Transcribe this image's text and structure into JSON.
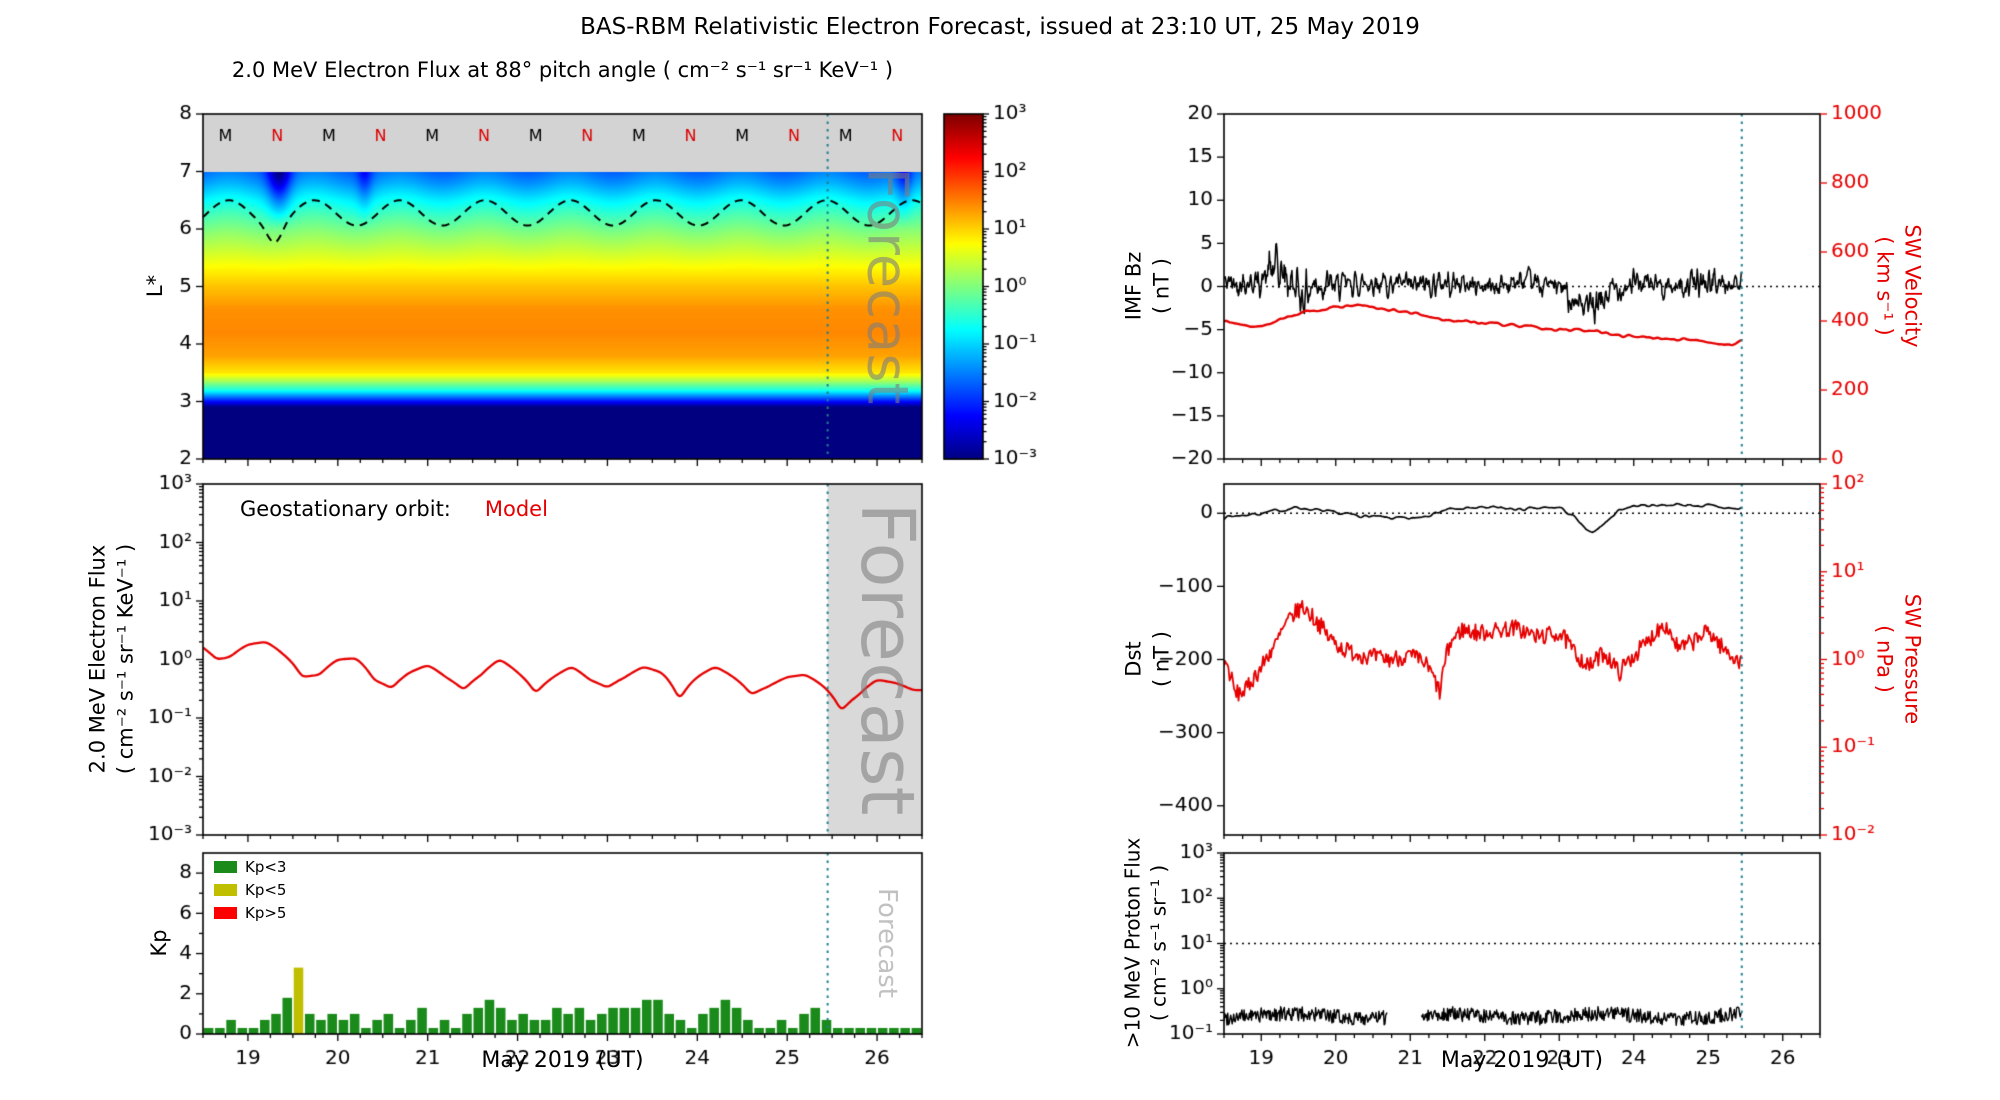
{
  "title": "BAS-RBM Relativistic Electron Forecast, issued at 23:10 UT, 25 May 2019",
  "x_axis": {
    "label": "May 2019 (UT)",
    "range": [
      18.5,
      26.5
    ],
    "ticks": [
      19,
      20,
      21,
      22,
      23,
      24,
      25,
      26
    ]
  },
  "forecast": {
    "label": "Forecast",
    "start_day": 25.45
  },
  "colors": {
    "model_red": "#e60000",
    "forecast_line": "#1f7f8f",
    "forecast_band": "#d9d9d9",
    "heatmap_gray_band": "#d3d3d3",
    "n_label_red": "#dd0000",
    "kp_green": "#1a8a1a",
    "kp_yellow": "#bfbf00",
    "kp_red": "#ff0000"
  },
  "chart_data": {
    "panels": [
      {
        "id": "electron-flux-heatmap",
        "type": "heatmap",
        "title": "2.0 MeV Electron Flux at 88° pitch angle ( cm⁻² s⁻¹ sr⁻¹ KeV⁻¹ )",
        "ylabel": "L*",
        "ylim": [
          2,
          8
        ],
        "yticks": [
          2,
          3,
          4,
          5,
          6,
          7,
          8
        ],
        "gray_band_above": 7,
        "colormap": "jet",
        "clim_log10": [
          -3,
          3
        ],
        "colorbar_tick_exponents": [
          3,
          2,
          1,
          0,
          -1,
          -2,
          -3
        ],
        "profile_L": [
          2.0,
          2.9,
          3.05,
          3.2,
          3.35,
          3.5,
          3.8,
          4.2,
          4.6,
          5.0,
          5.3,
          5.6,
          5.9,
          6.2,
          6.5,
          6.8,
          7.0
        ],
        "profile_log10_flux": [
          -3,
          -3,
          -1.8,
          -0.6,
          0.2,
          0.9,
          1.3,
          1.45,
          1.4,
          1.1,
          0.8,
          0.45,
          0.1,
          -0.3,
          -0.75,
          -1.3,
          -1.6
        ],
        "wiggle": {
          "amplitude": 0.12,
          "period_days": 0.95,
          "min_L": 5.2
        },
        "dips": [
          {
            "x": 19.35,
            "sigma": 0.09,
            "depth": 1.3
          },
          {
            "x": 20.3,
            "sigma": 0.06,
            "depth": 0.6
          },
          {
            "x": 26.3,
            "sigma": 0.07,
            "depth": 0.8
          }
        ],
        "dashed_line": {
          "name": "geostationary-orbit-lstar",
          "mean": 6.28,
          "amplitude": 0.22,
          "period_days": 0.95,
          "phase_x": 18.55,
          "dip": {
            "x": 19.3,
            "sigma": 0.08,
            "depth": 0.3
          }
        },
        "top_labels": [
          {
            "x": 18.75,
            "text": "M"
          },
          {
            "x": 19.325,
            "text": "N"
          },
          {
            "x": 19.9,
            "text": "M"
          },
          {
            "x": 20.475,
            "text": "N"
          },
          {
            "x": 21.05,
            "text": "M"
          },
          {
            "x": 21.625,
            "text": "N"
          },
          {
            "x": 22.2,
            "text": "M"
          },
          {
            "x": 22.775,
            "text": "N"
          },
          {
            "x": 23.35,
            "text": "M"
          },
          {
            "x": 23.925,
            "text": "N"
          },
          {
            "x": 24.5,
            "text": "M"
          },
          {
            "x": 25.075,
            "text": "N"
          },
          {
            "x": 25.65,
            "text": "M"
          },
          {
            "x": 26.225,
            "text": "N"
          }
        ]
      },
      {
        "id": "geostationary-electron-flux",
        "type": "line",
        "ylabel_line1": "2.0 MeV Electron Flux",
        "ylabel_line2": "( cm⁻² s⁻¹ sr⁻¹ KeV⁻¹ )",
        "yscale": "log",
        "ylim_exponents": [
          -3,
          3
        ],
        "annotation_prefix": "Geostationary orbit:",
        "series": [
          {
            "name": "Model",
            "color": "red",
            "x": [
              18.5,
              18.65,
              18.8,
              19.0,
              19.2,
              19.4,
              19.6,
              19.8,
              20.0,
              20.2,
              20.4,
              20.6,
              20.8,
              21.0,
              21.2,
              21.4,
              21.6,
              21.8,
              22.0,
              22.2,
              22.4,
              22.6,
              22.8,
              23.0,
              23.2,
              23.4,
              23.6,
              23.8,
              24.0,
              24.2,
              24.4,
              24.6,
              24.8,
              25.0,
              25.2,
              25.4,
              25.6,
              25.8,
              26.0,
              26.2,
              26.4
            ],
            "flux": [
              1.6,
              1.0,
              1.1,
              1.8,
              2.0,
              1.2,
              0.5,
              0.55,
              1.0,
              1.05,
              0.45,
              0.32,
              0.6,
              0.8,
              0.5,
              0.3,
              0.55,
              1.0,
              0.6,
              0.26,
              0.5,
              0.75,
              0.45,
              0.33,
              0.5,
              0.75,
              0.6,
              0.2,
              0.5,
              0.75,
              0.5,
              0.25,
              0.35,
              0.5,
              0.55,
              0.35,
              0.13,
              0.25,
              0.45,
              0.4,
              0.3
            ]
          }
        ]
      },
      {
        "id": "kp-index",
        "type": "bar",
        "ylabel": "Kp",
        "xlabel": "May 2019 (UT)",
        "ylim": [
          0,
          9
        ],
        "yticks": [
          0,
          2,
          4,
          6,
          8
        ],
        "bar_start_day": 18.5,
        "bar_step_days": 0.125,
        "color_rule": {
          "green_below": 3,
          "yellow_below": 5,
          "red_at_or_above": 5
        },
        "legend": [
          {
            "label": "Kp<3",
            "color": "green"
          },
          {
            "label": "Kp<5",
            "color": "yellow"
          },
          {
            "label": "Kp>5",
            "color": "red"
          }
        ],
        "values": [
          0.3,
          0.3,
          0.7,
          0.3,
          0.3,
          0.7,
          1.0,
          1.8,
          3.3,
          1.0,
          0.7,
          1.0,
          0.7,
          1.0,
          0.3,
          0.7,
          1.0,
          0.3,
          0.7,
          1.3,
          0.3,
          0.7,
          0.3,
          1.0,
          1.3,
          1.7,
          1.3,
          0.7,
          1.0,
          0.7,
          0.7,
          1.3,
          1.0,
          1.3,
          0.7,
          1.0,
          1.3,
          1.3,
          1.3,
          1.7,
          1.7,
          1.0,
          0.7,
          0.3,
          1.0,
          1.3,
          1.7,
          1.3,
          0.7,
          0.3,
          0.3,
          0.7,
          0.3,
          1.0,
          1.3,
          0.7,
          0.3,
          0.3,
          0.3,
          0.3,
          0.3,
          0.3,
          0.3,
          0.3
        ]
      },
      {
        "id": "imf-bz-sw-velocity",
        "type": "line",
        "left_axis": {
          "label_line1": "IMF Bz",
          "label_line2": "( nT )",
          "ylim": [
            -20,
            20
          ],
          "ticks": [
            -20,
            -15,
            -10,
            -5,
            0,
            5,
            10,
            15,
            20
          ],
          "zero_dotted_line": true
        },
        "right_axis": {
          "label_line1": "SW Velocity",
          "label_line2": "( km s⁻¹ )",
          "ylim": [
            0,
            1000
          ],
          "ticks": [
            0,
            200,
            400,
            600,
            800,
            1000
          ],
          "color": "red"
        },
        "data_end_day": 25.45,
        "series": [
          {
            "name": "IMF Bz",
            "axis": "left",
            "color": "black",
            "anchors_x": [
              18.5,
              19.0,
              19.15,
              19.35,
              19.55,
              19.75,
              20.0,
              20.5,
              21.0,
              21.5,
              22.0,
              22.5,
              23.0,
              23.2,
              23.45,
              23.7,
              24.0,
              24.5,
              25.0,
              25.45
            ],
            "anchors_y": [
              0.5,
              0.5,
              2.0,
              1.0,
              -1.0,
              0.5,
              0.0,
              0.5,
              0.0,
              0.5,
              0.0,
              0.5,
              0.0,
              -1.5,
              -3.0,
              -0.5,
              0.5,
              0.0,
              0.5,
              0.0
            ],
            "noise_amp": [
              2.0,
              2.2,
              4.5,
              4.5,
              4.0,
              3.0,
              2.2,
              2.0,
              2.0,
              2.0,
              2.0,
              2.0,
              2.0,
              2.5,
              3.0,
              2.5,
              2.0,
              2.0,
              2.2,
              2.0
            ]
          },
          {
            "name": "SW Velocity",
            "axis": "right",
            "color": "red",
            "noise_amp": 7,
            "anchors_x": [
              18.5,
              18.8,
              19.1,
              19.4,
              19.7,
              20.0,
              20.3,
              20.6,
              21.0,
              21.4,
              21.8,
              22.2,
              22.6,
              23.0,
              23.4,
              23.8,
              24.2,
              24.6,
              25.0,
              25.3,
              25.45
            ],
            "anchors_y": [
              400,
              385,
              390,
              415,
              430,
              440,
              445,
              435,
              425,
              405,
              398,
              390,
              382,
              375,
              372,
              360,
              352,
              348,
              340,
              330,
              345
            ]
          }
        ]
      },
      {
        "id": "dst-sw-pressure",
        "type": "line",
        "left_axis": {
          "label_line1": "Dst",
          "label_line2": "( nT )",
          "ylim": [
            -440,
            40
          ],
          "ticks": [
            0,
            -100,
            -200,
            -300,
            -400
          ],
          "zero_dotted_line": true
        },
        "right_axis": {
          "label_line1": "SW Pressure",
          "label_line2": "( nPa )",
          "scale": "log",
          "ylim_exponents": [
            -2,
            2
          ],
          "color": "red"
        },
        "data_end_day": 25.45,
        "series": [
          {
            "name": "Dst",
            "axis": "left",
            "color": "black",
            "noise_amp": 4,
            "anchors_x": [
              18.5,
              19.0,
              19.5,
              20.0,
              20.5,
              21.0,
              21.5,
              22.0,
              22.5,
              23.0,
              23.2,
              23.4,
              23.6,
              23.8,
              24.0,
              24.5,
              25.0,
              25.45
            ],
            "anchors_y": [
              -5,
              0,
              8,
              0,
              -5,
              -8,
              5,
              8,
              5,
              8,
              -5,
              -28,
              -15,
              5,
              10,
              12,
              10,
              5
            ]
          },
          {
            "name": "SW Pressure",
            "axis": "right",
            "color": "red",
            "noise_log10": 0.1,
            "anchors_x": [
              18.5,
              18.65,
              18.8,
              19.0,
              19.2,
              19.4,
              19.55,
              19.7,
              19.9,
              20.1,
              20.4,
              20.7,
              21.0,
              21.2,
              21.4,
              21.55,
              21.7,
              21.9,
              22.1,
              22.4,
              22.7,
              23.0,
              23.2,
              23.4,
              23.6,
              23.8,
              24.0,
              24.2,
              24.4,
              24.6,
              24.8,
              25.0,
              25.2,
              25.45
            ],
            "anchors_y": [
              1.0,
              0.4,
              0.45,
              0.8,
              1.5,
              3.0,
              4.0,
              3.0,
              1.8,
              1.3,
              1.1,
              1.0,
              1.1,
              0.9,
              0.4,
              1.6,
              2.2,
              2.0,
              2.1,
              2.3,
              1.8,
              2.0,
              1.2,
              0.8,
              1.2,
              0.7,
              1.1,
              1.6,
              2.6,
              1.3,
              1.6,
              2.1,
              1.3,
              0.9
            ]
          }
        ]
      },
      {
        "id": "proton-flux",
        "type": "line",
        "ylabel_line1": ">10 MeV Proton Flux",
        "ylabel_line2": "( cm⁻² s⁻¹ sr⁻¹ )",
        "xlabel": "May 2019 (UT)",
        "yscale": "log",
        "ylim_exponents": [
          -1,
          3
        ],
        "dotted_hline_value": 10,
        "series": [
          {
            "name": ">10 MeV Proton Flux",
            "color": "black",
            "baseline": 0.25,
            "noise_log10": 0.16,
            "gap_days": [
              20.7,
              21.15
            ],
            "start_day": 18.5,
            "end_day": 25.45
          }
        ]
      }
    ]
  }
}
